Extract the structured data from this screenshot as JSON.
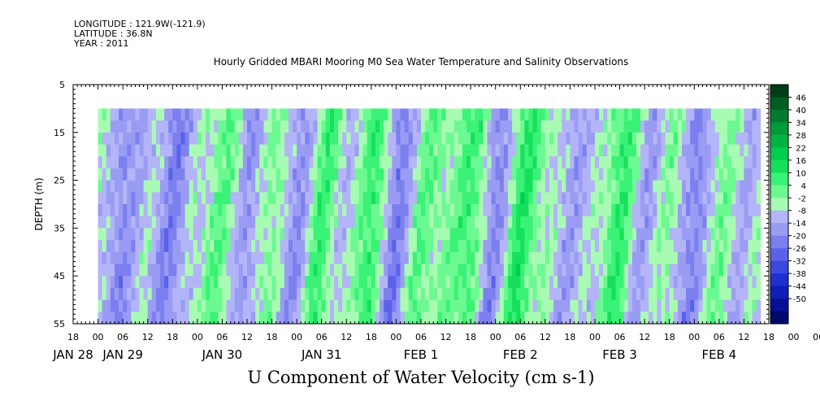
{
  "meta": {
    "longitude": "LONGITUDE : 121.9W(-121.9)",
    "latitude": "LATITUDE : 36.8N",
    "year": "YEAR : 2011"
  },
  "chart_data": {
    "type": "heatmap",
    "title": "Hourly Gridded MBARI Mooring M0 Sea Water Temperature and Salinity Observations",
    "xlabel": "U Component of Water Velocity (cm s-1)",
    "ylabel": "DEPTH (m)",
    "x_range_hours": [
      -6,
      162
    ],
    "x_origin": "JAN 28 2011 00:00",
    "data_x_range_hours": [
      0,
      160
    ],
    "y_range": [
      5,
      55
    ],
    "y_reversed": true,
    "data_y_range": [
      10,
      55
    ],
    "y_ticks": [
      5,
      15,
      25,
      35,
      45,
      55
    ],
    "x_hour_ticks": [
      "18",
      "00",
      "06",
      "12",
      "18",
      "00",
      "06",
      "12",
      "18",
      "00",
      "06",
      "12",
      "18",
      "00",
      "06",
      "12",
      "18",
      "00",
      "06",
      "12",
      "18",
      "00",
      "06",
      "12",
      "18",
      "00",
      "06",
      "12",
      "18",
      "00",
      "06",
      "12",
      "18",
      "00",
      "06",
      "12",
      "18"
    ],
    "x_date_labels": [
      {
        "label": "JAN 28",
        "hour": -6
      },
      {
        "label": "JAN 29",
        "hour": 6
      },
      {
        "label": "JAN 30",
        "hour": 30
      },
      {
        "label": "JAN 31",
        "hour": 54
      },
      {
        "label": "FEB  1",
        "hour": 78
      },
      {
        "label": "FEB  2",
        "hour": 102
      },
      {
        "label": "FEB  3",
        "hour": 126
      },
      {
        "label": "FEB  4",
        "hour": 150
      }
    ],
    "colorbar": {
      "labels": [
        "46",
        "40",
        "34",
        "28",
        "22",
        "16",
        "10",
        "4",
        "-2",
        "-8",
        "-14",
        "-20",
        "-26",
        "-32",
        "-38",
        "-44",
        "-50"
      ],
      "colors": [
        "#003c15",
        "#005e22",
        "#007a2d",
        "#009a38",
        "#00b443",
        "#00cc4d",
        "#14e05c",
        "#3af275",
        "#6cf992",
        "#a8fbb2",
        "#b4b4f8",
        "#9a9cf4",
        "#7c80ef",
        "#5a62ea",
        "#3a48df",
        "#1e30cf",
        "#0e1eb6",
        "#061096",
        "#000a6a"
      ],
      "range": [
        -53,
        52
      ]
    },
    "approx_profile": {
      "hours": [
        0,
        6,
        12,
        18,
        24,
        30,
        36,
        42,
        48,
        54,
        60,
        66,
        72,
        78,
        84,
        90,
        96,
        102,
        108,
        114,
        120,
        126,
        132,
        138,
        144,
        150,
        156,
        160
      ],
      "values": [
        -2,
        -14,
        -4,
        -16,
        -2,
        6,
        -12,
        4,
        -14,
        10,
        -6,
        12,
        -18,
        6,
        2,
        10,
        -16,
        14,
        0,
        -10,
        -4,
        12,
        -10,
        2,
        -16,
        4,
        -8,
        -2
      ]
    }
  }
}
